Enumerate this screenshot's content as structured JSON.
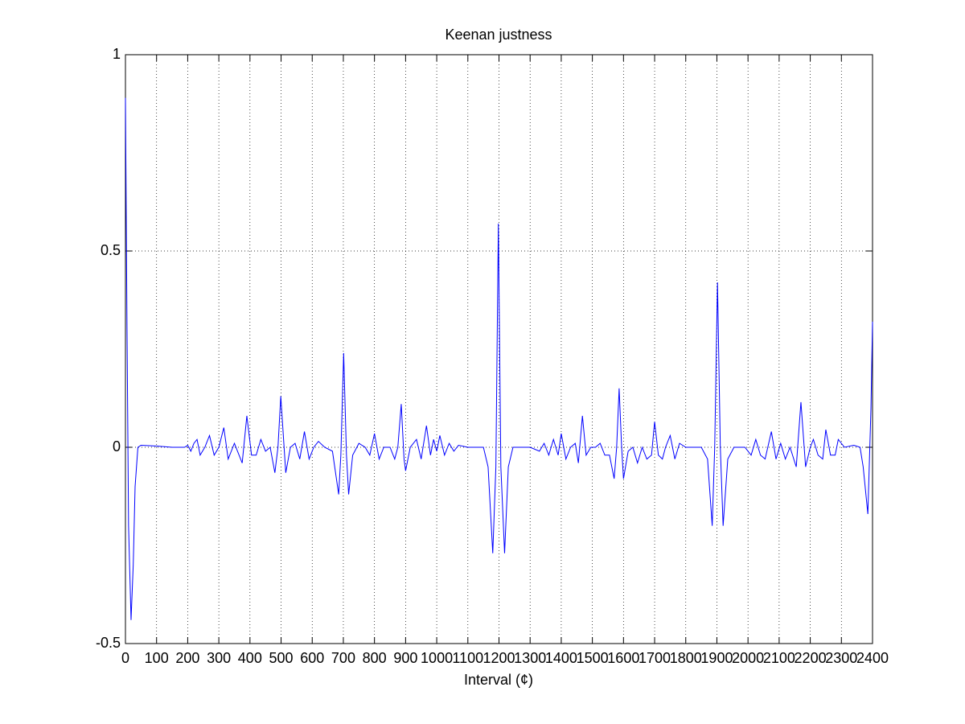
{
  "chart_data": {
    "type": "line",
    "title": "Keenan justness",
    "xlabel": "Interval (¢)",
    "x": [
      0,
      5,
      10,
      18,
      25,
      31,
      40,
      50,
      100,
      150,
      190,
      200,
      210,
      220,
      230,
      240,
      255,
      270,
      285,
      300,
      316,
      330,
      350,
      365,
      375,
      390,
      405,
      420,
      435,
      450,
      465,
      480,
      490,
      499,
      508,
      515,
      530,
      545,
      560,
      575,
      590,
      605,
      620,
      640,
      665,
      685,
      692,
      701,
      710,
      717,
      730,
      750,
      770,
      785,
      800,
      815,
      830,
      850,
      865,
      875,
      886,
      895,
      900,
      915,
      935,
      950,
      967,
      980,
      990,
      1000,
      1010,
      1025,
      1040,
      1055,
      1070,
      1100,
      1150,
      1165,
      1180,
      1190,
      1198,
      1206,
      1218,
      1230,
      1245,
      1300,
      1330,
      1345,
      1360,
      1375,
      1390,
      1400,
      1415,
      1430,
      1445,
      1455,
      1468,
      1480,
      1495,
      1510,
      1525,
      1540,
      1555,
      1570,
      1578,
      1586,
      1594,
      1600,
      1615,
      1630,
      1645,
      1660,
      1675,
      1690,
      1700,
      1712,
      1725,
      1735,
      1750,
      1765,
      1780,
      1800,
      1850,
      1870,
      1885,
      1893,
      1902,
      1911,
      1920,
      1935,
      1955,
      1990,
      2010,
      2025,
      2040,
      2055,
      2075,
      2090,
      2105,
      2120,
      2135,
      2155,
      2170,
      2185,
      2200,
      2210,
      2225,
      2240,
      2250,
      2265,
      2280,
      2290,
      2310,
      2340,
      2360,
      2370,
      2385,
      2395,
      2400
    ],
    "series": [
      {
        "name": "Keenan justness",
        "color": "#0000ff",
        "values": [
          0.89,
          0.3,
          -0.2,
          -0.44,
          -0.3,
          -0.1,
          0.0,
          0.005,
          0.003,
          0.0,
          0.0,
          0.005,
          -0.01,
          0.01,
          0.02,
          -0.02,
          0.0,
          0.03,
          -0.02,
          0.0,
          0.05,
          -0.03,
          0.01,
          -0.02,
          -0.04,
          0.08,
          -0.02,
          -0.02,
          0.02,
          -0.01,
          0.0,
          -0.065,
          0.0,
          0.13,
          0.02,
          -0.065,
          0.0,
          0.01,
          -0.03,
          0.04,
          -0.03,
          0.0,
          0.015,
          0.0,
          -0.01,
          -0.12,
          -0.02,
          0.24,
          -0.02,
          -0.12,
          -0.02,
          0.01,
          0.0,
          -0.02,
          0.035,
          -0.03,
          0.0,
          0.0,
          -0.03,
          0.0,
          0.11,
          -0.03,
          -0.06,
          0.0,
          0.02,
          -0.03,
          0.055,
          -0.02,
          0.02,
          -0.01,
          0.03,
          -0.02,
          0.01,
          -0.01,
          0.005,
          0.0,
          0.0,
          -0.05,
          -0.27,
          -0.05,
          0.57,
          -0.05,
          -0.27,
          -0.05,
          0.0,
          0.0,
          -0.01,
          0.01,
          -0.02,
          0.02,
          -0.02,
          0.035,
          -0.03,
          0.0,
          0.01,
          -0.04,
          0.08,
          -0.02,
          0.0,
          0.0,
          0.01,
          -0.02,
          -0.02,
          -0.08,
          0.0,
          0.15,
          0.0,
          -0.08,
          -0.01,
          0.0,
          -0.04,
          0.0,
          -0.03,
          -0.02,
          0.065,
          -0.02,
          -0.03,
          0.0,
          0.03,
          -0.03,
          0.01,
          0.0,
          0.0,
          -0.03,
          -0.2,
          0.0,
          0.42,
          0.0,
          -0.2,
          -0.03,
          0.0,
          0.0,
          -0.02,
          0.02,
          -0.02,
          -0.03,
          0.04,
          -0.03,
          0.01,
          -0.03,
          0.0,
          -0.05,
          0.115,
          -0.05,
          0.0,
          0.02,
          -0.02,
          -0.03,
          0.045,
          -0.02,
          -0.02,
          0.02,
          0.0,
          0.005,
          0.0,
          -0.05,
          -0.17,
          0.1,
          0.32
        ]
      }
    ],
    "xlim": [
      0,
      2400
    ],
    "xticks": [
      0,
      100,
      200,
      300,
      400,
      500,
      600,
      700,
      800,
      900,
      1000,
      1100,
      1200,
      1300,
      1400,
      1500,
      1600,
      1700,
      1800,
      1900,
      2000,
      2100,
      2200,
      2300,
      2400
    ],
    "ylim": [
      -0.5,
      1
    ],
    "yticks": [
      -0.5,
      0,
      0.5,
      1
    ],
    "grid": true
  }
}
